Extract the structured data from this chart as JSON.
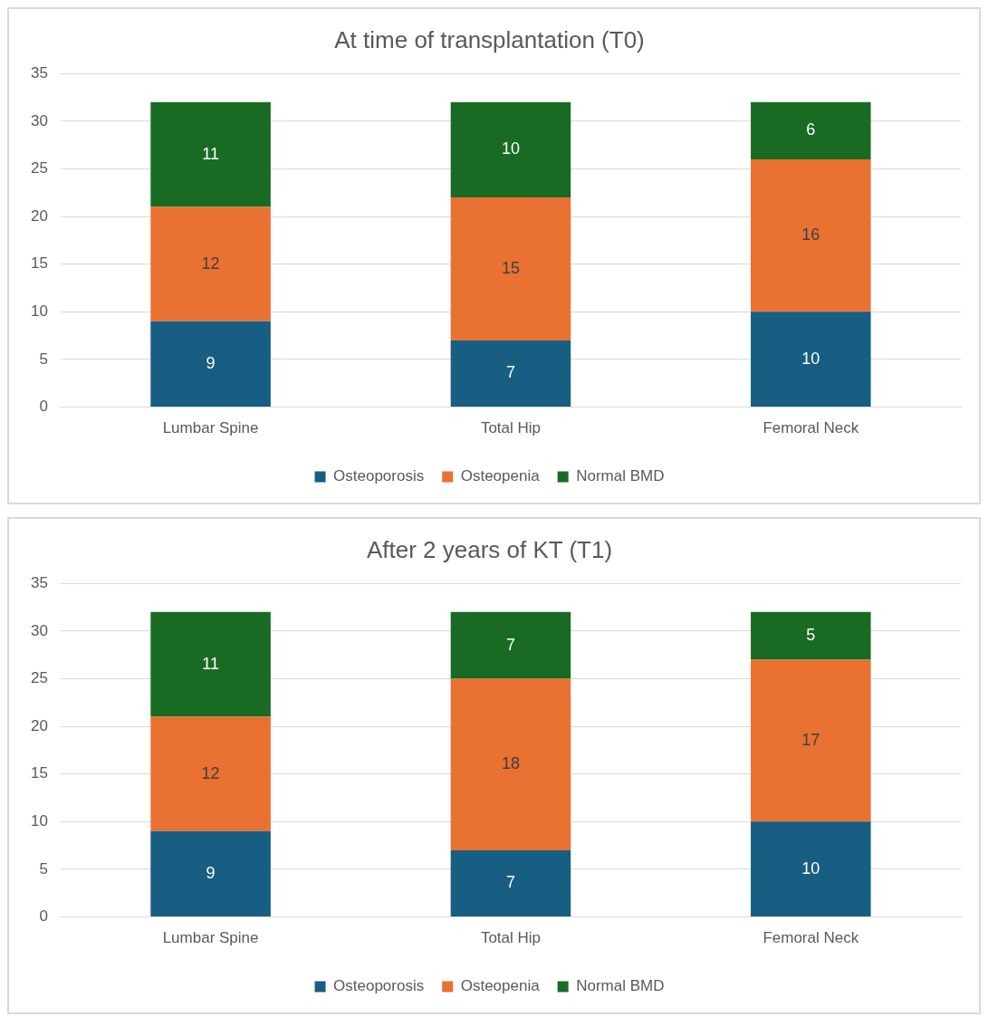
{
  "chart_data": [
    {
      "type": "bar",
      "title": "At time of transplantation (T0)",
      "categories": [
        "Lumbar Spine",
        "Total Hip",
        "Femoral Neck"
      ],
      "stacked": true,
      "series": [
        {
          "name": "Osteoporosis",
          "color": "#175e82",
          "values": [
            9,
            7,
            10
          ]
        },
        {
          "name": "Osteopenia",
          "color": "#e97132",
          "values": [
            12,
            15,
            16
          ]
        },
        {
          "name": "Normal BMD",
          "color": "#196b24",
          "values": [
            11,
            10,
            6
          ]
        }
      ],
      "ylim": [
        0,
        35
      ],
      "yticks": [
        0,
        5,
        10,
        15,
        20,
        25,
        30,
        35
      ],
      "grid": "y",
      "legend": "bottom",
      "data_labels": true
    },
    {
      "type": "bar",
      "title": "After 2 years of KT (T1)",
      "categories": [
        "Lumbar Spine",
        "Total Hip",
        "Femoral Neck"
      ],
      "stacked": true,
      "series": [
        {
          "name": "Osteoporosis",
          "color": "#175e82",
          "values": [
            9,
            7,
            10
          ]
        },
        {
          "name": "Osteopenia",
          "color": "#e97132",
          "values": [
            12,
            18,
            17
          ]
        },
        {
          "name": "Normal BMD",
          "color": "#196b24",
          "values": [
            11,
            7,
            5
          ]
        }
      ],
      "ylim": [
        0,
        35
      ],
      "yticks": [
        0,
        5,
        10,
        15,
        20,
        25,
        30,
        35
      ],
      "grid": "y",
      "legend": "bottom",
      "data_labels": true
    }
  ]
}
